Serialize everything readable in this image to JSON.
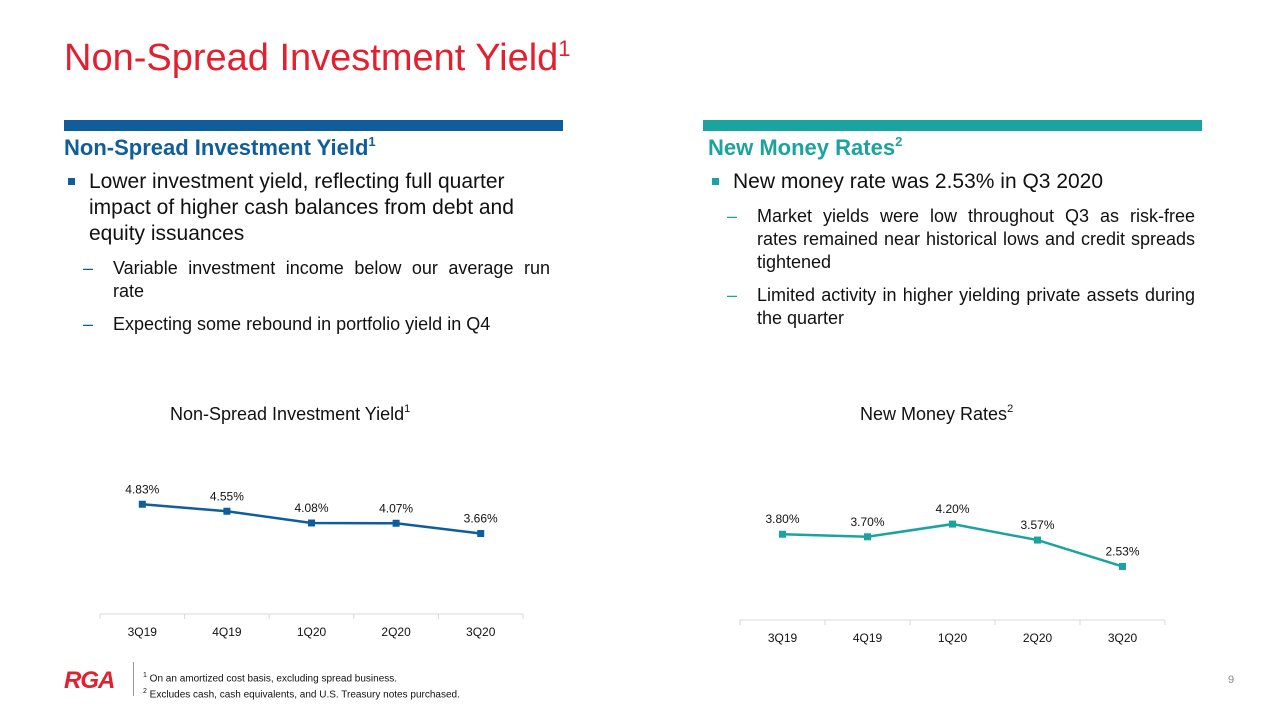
{
  "page": {
    "title": "Non-Spread Investment Yield",
    "title_sup": "1",
    "page_number": "9"
  },
  "left": {
    "heading": "Non-Spread Investment Yield",
    "heading_sup": "1",
    "bullet": "Lower investment yield, reflecting full quarter impact of higher cash balances from debt and equity issuances",
    "subbullets": [
      "Variable investment income below our average run rate",
      "Expecting some rebound in portfolio yield in Q4"
    ],
    "chart_title": "Non-Spread Investment Yield",
    "chart_title_sup": "1"
  },
  "right": {
    "heading": "New Money Rates",
    "heading_sup": "2",
    "bullet": "New money rate was 2.53% in Q3 2020",
    "subbullets": [
      "Market yields were low throughout Q3 as risk-free rates remained near historical lows and credit spreads tightened",
      "Limited activity in higher yielding private assets during the quarter"
    ],
    "chart_title": "New Money Rates",
    "chart_title_sup": "2"
  },
  "footer": {
    "logo_text": "RGA",
    "footnote_1_marker": "1",
    "footnote_1": " On an amortized cost basis, excluding spread business.",
    "footnote_2_marker": "2",
    "footnote_2": " Excludes cash, cash equivalents, and U.S. Treasury notes purchased."
  },
  "colors": {
    "title_red": "#e2202f",
    "navy": "#0f5d9a",
    "teal": "#1ba3a0"
  },
  "chart_data": [
    {
      "type": "line",
      "title": "Non-Spread Investment Yield",
      "categories": [
        "3Q19",
        "4Q19",
        "1Q20",
        "2Q20",
        "3Q20"
      ],
      "values": [
        4.83,
        4.55,
        4.08,
        4.07,
        3.66
      ],
      "data_labels": [
        "4.83%",
        "4.55%",
        "4.08%",
        "4.07%",
        "3.66%"
      ],
      "color": "#0f5d9a",
      "ylim": [
        2.0,
        6.0
      ],
      "grid": false,
      "legend": "none"
    },
    {
      "type": "line",
      "title": "New Money Rates",
      "categories": [
        "3Q19",
        "4Q19",
        "1Q20",
        "2Q20",
        "3Q20"
      ],
      "values": [
        3.8,
        3.7,
        4.2,
        3.57,
        2.53
      ],
      "data_labels": [
        "3.80%",
        "3.70%",
        "4.20%",
        "3.57%",
        "2.53%"
      ],
      "color": "#1ba3a0",
      "ylim": [
        0.5,
        7.0
      ],
      "grid": false,
      "legend": "none"
    }
  ]
}
